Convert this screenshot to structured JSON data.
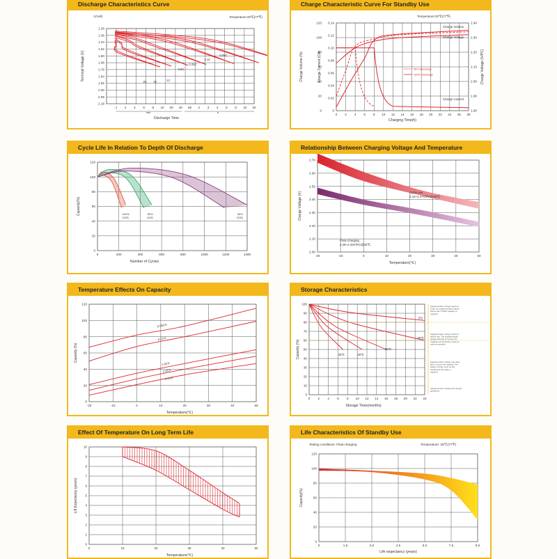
{
  "colors": {
    "accent": "#f2b81c",
    "curve": "#e0242b",
    "grid": "#555555",
    "purple": "#8a3a7c",
    "green": "#3aa86a"
  },
  "charts": [
    {
      "title": "Discharge Characteristics Curve",
      "note": "Temperature:25℃(77℉)",
      "ylabel": "Terminal Voltage (V)",
      "yunit": "(V/cell)",
      "xlabel": "Discharge Time",
      "xgroups": [
        "min",
        "h"
      ],
      "xticks": [
        "1",
        "2",
        "4",
        "6",
        "8",
        "10",
        "20",
        "40",
        "60",
        "2",
        "3",
        "4",
        "6",
        "8",
        "10",
        "20"
      ],
      "yticks": [
        "2.18",
        "2.09",
        "2.00",
        "1.92",
        "1.84",
        "1.76",
        "1.68",
        "1.60",
        "1.52",
        "1.44",
        "1.36",
        "1.28"
      ],
      "series": [
        "3C",
        "2C",
        "1C",
        "0.6C",
        "0.25C",
        "0.1C",
        "0.05C"
      ]
    },
    {
      "title": "Charge Characteristic Curve For Standby Use",
      "note": "Temperature:25℃(77℉)",
      "ylabel_left1": "Charge Volume (%)",
      "ylabel_left2": "Charge Current (CA)",
      "ylabel_right": "Charge Voltage (V/PC)",
      "xlabel": "Charging Time(h)",
      "xticks": [
        "0",
        "2",
        "4",
        "6",
        "8",
        "10",
        "12",
        "14",
        "16",
        "18",
        "20",
        "22",
        "24",
        "26",
        "28"
      ],
      "yticks_volume": [
        "0",
        "20",
        "40",
        "60",
        "80",
        "100",
        "120"
      ],
      "yticks_current": [
        "0",
        "0.02",
        "0.04",
        "0.06",
        "0.08",
        "0.10",
        "0.12",
        "0.14"
      ],
      "yticks_voltage": [
        "1.80",
        "1.90",
        "2.00",
        "2.10",
        "2.20",
        "2.30",
        "2.40"
      ],
      "labels": [
        "Charge Volume",
        "Charge Voltage",
        "Charge Current"
      ],
      "legend": [
        "50% Discharge",
        "100% Discharge"
      ]
    },
    {
      "title": "Cycle Life In Relation To Depth Of Discharge",
      "ylabel": "Capacity(%)",
      "xlabel": "Number of Cycles",
      "xticks": [
        "0",
        "200",
        "400",
        "600",
        "800",
        "1000",
        "1200",
        "1400"
      ],
      "yticks": [
        "0",
        "20",
        "40",
        "60",
        "80",
        "100",
        "120"
      ],
      "series": [
        "100% DOD",
        "50% DOD",
        "30% DOD"
      ]
    },
    {
      "title": "Relationship Between Charging Voltage And Temperature",
      "ylabel": "Charge Voltage (V)",
      "xlabel": "Temperature(℃)",
      "xticks": [
        "-20",
        "-10",
        "0",
        "10",
        "20",
        "30",
        "40",
        "50"
      ],
      "yticks": [
        "2.00",
        "2.10",
        "2.20",
        "2.30",
        "2.40",
        "2.50",
        "2.60",
        "2.70"
      ],
      "band1": "Cycle use",
      "band1b": "2.43~2.47V/PC@25℃",
      "band2": "Float charging",
      "band2b": "2.28~2.32V/PC@25℃"
    },
    {
      "title": "Temperature Effects On Capacity",
      "ylabel": "Capacity (%)",
      "xlabel": "Temperature(℃)",
      "xticks": [
        "-20",
        "-10",
        "0",
        "10",
        "20",
        "30",
        "40",
        "50"
      ],
      "yticks": [
        "0",
        "20",
        "40",
        "60",
        "80",
        "100",
        "120"
      ],
      "series": [
        "0.05CA",
        "0.1CA",
        "1.0CA",
        "2.0CA",
        "3.0CA"
      ]
    },
    {
      "title": "Storage Characteristics",
      "ylabel": "Capacity (%)",
      "xlabel": "Storage Time(months)",
      "xticks": [
        "0",
        "2",
        "4",
        "6",
        "8",
        "10",
        "12",
        "14",
        "16",
        "18",
        "20",
        "22",
        "24"
      ],
      "yticks": [
        "0",
        "10",
        "20",
        "30",
        "40",
        "50",
        "60",
        "70",
        "80",
        "90",
        "100"
      ],
      "series": [
        "0℃",
        "20℃",
        "25℃",
        "30℃",
        "40℃"
      ],
      "notes": [
        "Supplementary charge required. Carry out supplementary charge before use if 100% capacity is required.",
        "Supplementary charge required before use. The supplementary charge will help to recover the capacity and should be made as early as possible.",
        "Supplementary charge may often fail to recover the capacity. The battery should never be left standing till this state is reached.",
        "Supplementary charge and storage guidelines."
      ]
    },
    {
      "title": "Effect Of Temperature On Long Term Life",
      "ylabel": "Lift Expectancy (years)",
      "xlabel": "Temperature(℃)",
      "xticks": [
        "0",
        "10",
        "20",
        "30",
        "40",
        "50"
      ],
      "yticks": [
        "0",
        "1",
        "2",
        "3",
        "4",
        "5",
        "6",
        "7",
        "8",
        "9",
        "10"
      ]
    },
    {
      "title": "Life Characteristics Of Standby Use",
      "note_left": "Testing conditions: Float charging",
      "note_right": "Temperature: 25℃(77℉)",
      "ylabel": "Capacity(%)",
      "xlabel": "Life expectancy (years)",
      "xticks": [
        "0",
        "1.5",
        "3.0",
        "4.5",
        "6.0",
        "7.5",
        "9.0"
      ],
      "yticks": [
        "0",
        "20",
        "40",
        "60",
        "80",
        "100",
        "120"
      ]
    }
  ],
  "chart_data": [
    {
      "type": "line",
      "title": "Discharge Characteristics Curve",
      "xlabel": "Discharge Time",
      "ylabel": "Terminal Voltage (V)",
      "ylim": [
        1.28,
        2.18
      ],
      "series": [
        {
          "name": "3C",
          "x_min": [
            1,
            4,
            8
          ],
          "y": [
            2.07,
            1.92,
            1.63
          ]
        },
        {
          "name": "2C",
          "x_min": [
            1,
            6,
            12
          ],
          "y": [
            2.09,
            1.94,
            1.63
          ]
        },
        {
          "name": "1C",
          "x_min": [
            1,
            20,
            40
          ],
          "y": [
            2.11,
            1.97,
            1.7
          ]
        },
        {
          "name": "0.6C",
          "x_min": [
            1,
            40,
            70
          ],
          "y": [
            2.12,
            1.99,
            1.74
          ]
        },
        {
          "name": "0.25C",
          "x_h": [
            0.1,
            2,
            3.5
          ],
          "y": [
            2.14,
            2.01,
            1.78
          ]
        },
        {
          "name": "0.1C",
          "x_h": [
            0.1,
            7,
            10
          ],
          "y": [
            2.15,
            2.03,
            1.8
          ]
        },
        {
          "name": "0.05C",
          "x_h": [
            0.1,
            16,
            20
          ],
          "y": [
            2.15,
            2.04,
            1.8
          ]
        }
      ]
    },
    {
      "type": "line",
      "title": "Charge Characteristic Curve For Standby Use",
      "xlabel": "Charging Time(h)",
      "x": [
        0,
        2,
        4,
        6,
        8,
        10,
        14,
        20,
        28
      ],
      "series": [
        {
          "name": "Charge Volume (100% Discharge)",
          "values": [
            0,
            28,
            55,
            78,
            95,
            103,
            108,
            110,
            111
          ]
        },
        {
          "name": "Charge Voltage",
          "values": [
            2.12,
            2.22,
            2.3,
            2.35,
            2.37,
            2.38,
            2.38,
            2.39,
            2.39
          ]
        },
        {
          "name": "Charge Current",
          "values": [
            0.1,
            0.1,
            0.1,
            0.1,
            0.09,
            0.02,
            0.005,
            0.003,
            0.003
          ]
        }
      ]
    },
    {
      "type": "line",
      "title": "Cycle Life In Relation To Depth Of Discharge",
      "xlabel": "Number of Cycles",
      "ylabel": "Capacity(%)",
      "xlim": [
        0,
        1400
      ],
      "ylim": [
        0,
        120
      ],
      "series": [
        {
          "name": "100% DOD",
          "x": [
            0,
            50,
            150,
            250
          ],
          "values": [
            100,
            105,
            95,
            60
          ]
        },
        {
          "name": "50% DOD",
          "x": [
            0,
            100,
            300,
            480
          ],
          "values": [
            100,
            108,
            100,
            60
          ]
        },
        {
          "name": "30% DOD",
          "x": [
            0,
            300,
            800,
            1320
          ],
          "values": [
            100,
            110,
            100,
            60
          ]
        }
      ]
    },
    {
      "type": "area",
      "title": "Relationship Between Charging Voltage And Temperature",
      "xlabel": "Temperature(℃)",
      "ylabel": "Charge Voltage (V)",
      "xlim": [
        -20,
        50
      ],
      "ylim": [
        2.0,
        2.7
      ],
      "series": [
        {
          "name": "Cycle use",
          "x": [
            -20,
            0,
            25,
            50
          ],
          "upper": [
            2.75,
            2.61,
            2.47,
            2.38
          ],
          "lower": [
            2.68,
            2.54,
            2.43,
            2.33
          ]
        },
        {
          "name": "Float charging",
          "x": [
            -20,
            0,
            25,
            50
          ],
          "upper": [
            2.49,
            2.4,
            2.32,
            2.23
          ],
          "lower": [
            2.44,
            2.36,
            2.28,
            2.19
          ]
        }
      ]
    },
    {
      "type": "line",
      "title": "Temperature Effects On Capacity",
      "xlabel": "Temperature(℃)",
      "ylabel": "Capacity (%)",
      "xlim": [
        -20,
        50
      ],
      "ylim": [
        0,
        120
      ],
      "x": [
        -20,
        0,
        20,
        50
      ],
      "series": [
        {
          "name": "0.05CA",
          "values": [
            67,
            82,
            93,
            115
          ]
        },
        {
          "name": "0.1CA",
          "values": [
            50,
            68,
            80,
            99
          ]
        },
        {
          "name": "1.0CA",
          "values": [
            21,
            35,
            47,
            64
          ]
        },
        {
          "name": "2.0CA",
          "values": [
            14,
            28,
            40,
            56
          ]
        },
        {
          "name": "3.0CA",
          "values": [
            8,
            21,
            33,
            47
          ]
        }
      ]
    },
    {
      "type": "line",
      "title": "Storage Characteristics",
      "xlabel": "Storage Time(months)",
      "ylabel": "Capacity (%)",
      "xlim": [
        0,
        24
      ],
      "ylim": [
        0,
        100
      ],
      "series": [
        {
          "name": "0℃",
          "x": [
            0,
            24
          ],
          "values": [
            100,
            82
          ]
        },
        {
          "name": "20℃",
          "x": [
            0,
            24
          ],
          "values": [
            100,
            60
          ]
        },
        {
          "name": "25℃",
          "x": [
            0,
            16
          ],
          "values": [
            100,
            50
          ]
        },
        {
          "name": "30℃",
          "x": [
            0,
            11
          ],
          "values": [
            100,
            50
          ]
        },
        {
          "name": "40℃",
          "x": [
            0,
            7
          ],
          "values": [
            100,
            50
          ]
        }
      ]
    },
    {
      "type": "area",
      "title": "Effect Of Temperature On Long Term Life",
      "xlabel": "Temperature(℃)",
      "ylabel": "Lift Expectancy (years)",
      "xlim": [
        0,
        50
      ],
      "ylim": [
        0,
        10
      ],
      "x": [
        10,
        20,
        30,
        40,
        45
      ],
      "upper": [
        10,
        9.6,
        7.6,
        5.3,
        4.2
      ],
      "lower": [
        9.0,
        7.6,
        5.6,
        3.6,
        2.8
      ]
    },
    {
      "type": "area",
      "title": "Life Characteristics Of Standby Use",
      "xlabel": "Life expectancy (years)",
      "ylabel": "Capacity(%)",
      "xlim": [
        0,
        9
      ],
      "ylim": [
        0,
        120
      ],
      "x": [
        0,
        3,
        6,
        7.5,
        9
      ],
      "upper": [
        100,
        97,
        93,
        87,
        78
      ],
      "lower": [
        97,
        95,
        85,
        70,
        30
      ]
    }
  ]
}
